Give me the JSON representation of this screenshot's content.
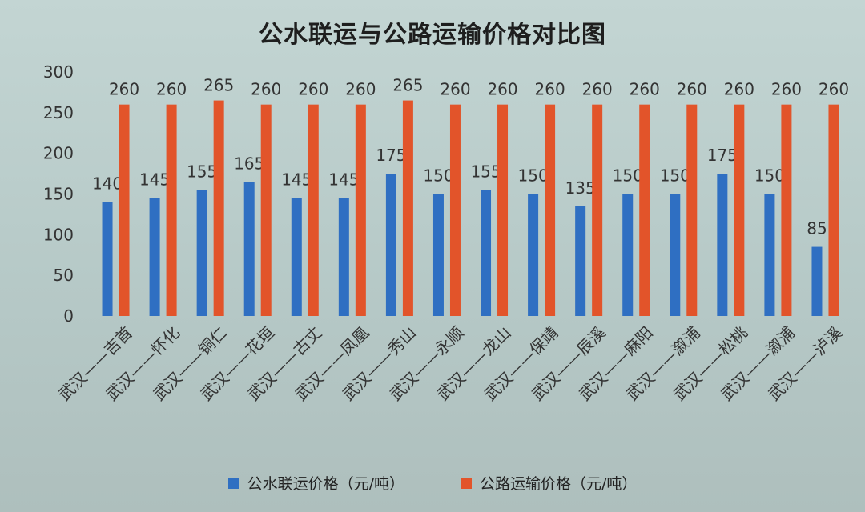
{
  "colors": {
    "water": "#2f6fc2",
    "road": "#e2542a"
  },
  "chart_data": {
    "type": "bar",
    "title": "公水联运与公路运输价格对比图",
    "categories": [
      "武汉——吉首",
      "武汉——怀化",
      "武汉——铜仁",
      "武汉——花垣",
      "武汉——古丈",
      "武汉——凤凰",
      "武汉——秀山",
      "武汉——永顺",
      "武汉——龙山",
      "武汉——保靖",
      "武汉——辰溪",
      "武汉——麻阳",
      "武汉——溆浦",
      "武汉——松桃",
      "武汉——溆浦",
      "武汉——泸溪"
    ],
    "series": [
      {
        "name": "公水联运价格（元/吨）",
        "values": [
          140,
          145,
          155,
          165,
          145,
          145,
          175,
          150,
          155,
          150,
          135,
          150,
          150,
          175,
          150,
          85
        ]
      },
      {
        "name": "公路运输价格（元/吨）",
        "values": [
          260,
          260,
          265,
          260,
          260,
          260,
          265,
          260,
          260,
          260,
          260,
          260,
          260,
          260,
          260,
          260
        ]
      }
    ],
    "ylim": [
      0,
      300
    ],
    "yticks": [
      "0",
      "50",
      "100",
      "150",
      "200",
      "250",
      "300"
    ],
    "grid": false,
    "legend_position": "bottom"
  }
}
